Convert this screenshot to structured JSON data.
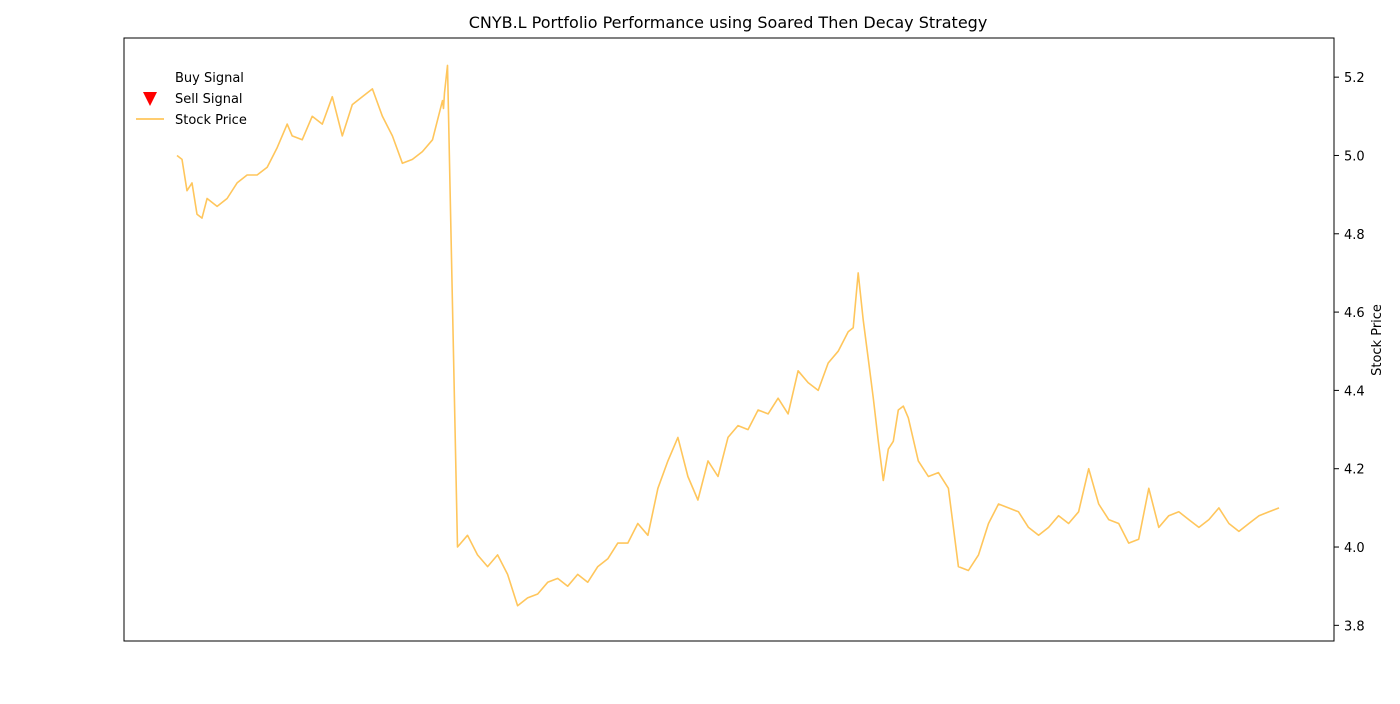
{
  "chart_data": {
    "type": "line",
    "title": "CNYB.L Portfolio Performance using Soared Then Decay Strategy",
    "xlabel": "",
    "ylabel": "Stock Price",
    "y_axis_side": "right",
    "ylim": [
      3.76,
      5.3
    ],
    "yticks": [
      3.8,
      4.0,
      4.2,
      4.4,
      4.6,
      4.8,
      5.0,
      5.2
    ],
    "ytick_labels": [
      "3.8",
      "4.0",
      "4.2",
      "4.4",
      "4.6",
      "4.8",
      "5.0",
      "5.2"
    ],
    "x_ticks_visible": false,
    "grid": false,
    "legend": {
      "placement": "upper-left",
      "entries": [
        {
          "label": "Buy Signal",
          "marker": "none"
        },
        {
          "label": "Sell Signal",
          "marker": "triangle-down",
          "color": "#ff0000"
        },
        {
          "label": "Stock Price",
          "marker": "line",
          "color": "#ffc65c"
        }
      ]
    },
    "series": [
      {
        "name": "Stock Price",
        "color": "#ffc65c",
        "x": [
          0,
          5,
          10,
          15,
          20,
          25,
          30,
          40,
          50,
          60,
          70,
          80,
          90,
          100,
          110,
          115,
          125,
          135,
          145,
          155,
          165,
          175,
          185,
          195,
          205,
          215,
          225,
          235,
          245,
          255,
          260,
          265,
          266,
          267,
          270,
          280,
          290,
          300,
          310,
          320,
          330,
          340,
          350,
          360,
          370,
          380,
          390,
          400,
          410,
          420,
          430,
          440,
          450,
          460,
          470,
          475,
          480,
          490,
          500,
          510,
          520,
          530,
          540,
          550,
          560,
          570,
          580,
          590,
          600,
          610,
          620,
          630,
          640,
          650,
          660,
          670,
          675,
          680,
          685,
          690,
          695,
          700,
          705,
          710,
          715,
          720,
          725,
          730,
          740,
          750,
          760,
          770,
          780,
          790,
          800,
          810,
          820,
          830,
          840,
          850,
          860,
          870,
          880,
          890,
          900,
          910,
          920,
          930,
          940,
          950,
          960,
          970,
          980,
          990,
          1000,
          1010,
          1020,
          1030,
          1040,
          1050,
          1060,
          1070,
          1080,
          1090,
          1100
        ],
        "y": [
          5.0,
          4.99,
          4.91,
          4.93,
          4.85,
          4.84,
          4.89,
          4.87,
          4.89,
          4.93,
          4.95,
          4.95,
          4.97,
          5.02,
          5.08,
          5.05,
          5.04,
          5.1,
          5.08,
          5.15,
          5.05,
          5.13,
          5.15,
          5.17,
          5.1,
          5.05,
          4.98,
          4.99,
          5.01,
          5.04,
          5.09,
          5.14,
          5.12,
          5.16,
          5.23,
          4.0,
          4.03,
          3.98,
          3.95,
          3.98,
          3.93,
          3.85,
          3.87,
          3.88,
          3.91,
          3.92,
          3.9,
          3.93,
          3.91,
          3.95,
          3.97,
          4.01,
          4.01,
          4.06,
          4.03,
          4.09,
          4.15,
          4.22,
          4.28,
          4.18,
          4.12,
          4.22,
          4.18,
          4.28,
          4.31,
          4.3,
          4.35,
          4.34,
          4.38,
          4.34,
          4.45,
          4.42,
          4.4,
          4.47,
          4.5,
          4.55,
          4.56,
          4.7,
          4.58,
          4.48,
          4.38,
          4.27,
          4.17,
          4.25,
          4.27,
          4.35,
          4.36,
          4.33,
          4.22,
          4.18,
          4.19,
          4.15,
          3.95,
          3.94,
          3.98,
          4.06,
          4.11,
          4.1,
          4.09,
          4.05,
          4.03,
          4.05,
          4.08,
          4.06,
          4.09,
          4.2,
          4.11,
          4.07,
          4.06,
          4.01,
          4.02,
          4.15,
          4.05,
          4.08,
          4.09,
          4.07,
          4.05,
          4.07,
          4.1,
          4.06,
          4.04,
          4.06,
          4.08,
          4.09,
          4.1
        ]
      }
    ]
  }
}
